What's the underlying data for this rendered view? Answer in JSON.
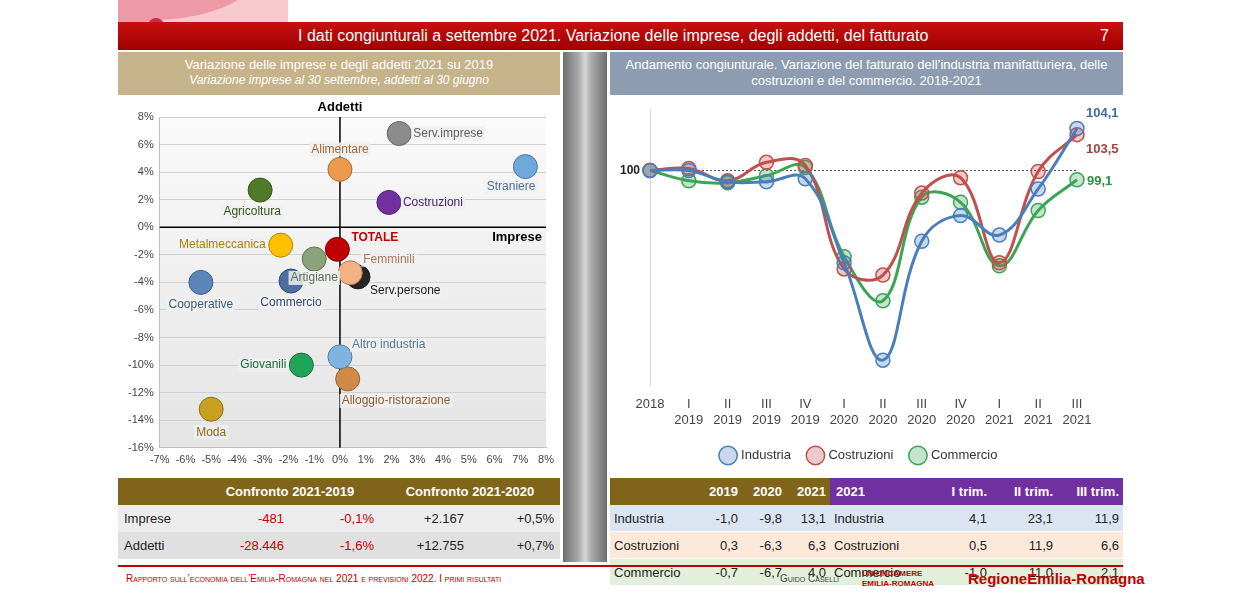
{
  "header": {
    "title": "I dati congiunturali a settembre 2021. Variazione delle imprese, degli addetti, del fatturato",
    "page": "7"
  },
  "chart_data": [
    {
      "type": "scatter",
      "title": "Variazione delle imprese e degli addetti 2021 su 2019",
      "subtitle": "Variazione imprese al 30 settembre, addetti al 30 giugno",
      "xlabel": "Imprese",
      "ylabel": "Addetti",
      "xlim": [
        -7,
        8
      ],
      "xticks": [
        {
          "value": -7,
          "label": "-7%"
        },
        {
          "value": -6,
          "label": "-6%"
        },
        {
          "value": -5,
          "label": "-5%"
        },
        {
          "value": -4,
          "label": "-4%"
        },
        {
          "value": -3,
          "label": "-3%"
        },
        {
          "value": -2,
          "label": "-2%"
        },
        {
          "value": -1,
          "label": "-1%"
        },
        {
          "value": 0,
          "label": "0%"
        },
        {
          "value": 1,
          "label": "1%"
        },
        {
          "value": 2,
          "label": "2%"
        },
        {
          "value": 3,
          "label": "3%"
        },
        {
          "value": 4,
          "label": "4%"
        },
        {
          "value": 5,
          "label": "5%"
        },
        {
          "value": 6,
          "label": "6%"
        },
        {
          "value": 7,
          "label": "7%"
        },
        {
          "value": 8,
          "label": "8%"
        }
      ],
      "ylim": [
        -16,
        8
      ],
      "yticks": [
        {
          "value": -16,
          "label": "-16%"
        },
        {
          "value": -14,
          "label": "-14%"
        },
        {
          "value": -12,
          "label": "-12%"
        },
        {
          "value": -10,
          "label": "-10%"
        },
        {
          "value": -8,
          "label": "-8%"
        },
        {
          "value": -6,
          "label": "-6%"
        },
        {
          "value": -4,
          "label": "-4%"
        },
        {
          "value": -2,
          "label": "-2%"
        },
        {
          "value": 0,
          "label": "0%"
        },
        {
          "value": 2,
          "label": "2%"
        },
        {
          "value": 4,
          "label": "4%"
        },
        {
          "value": 6,
          "label": "6%"
        },
        {
          "value": 8,
          "label": "8%"
        }
      ],
      "grid": "y",
      "series": [
        {
          "name": "Serv.imprese",
          "color": "#8c8c8c",
          "x": [
            2.3
          ],
          "values": [
            6.8
          ]
        },
        {
          "name": "Alimentare",
          "color": "#ee9a4d",
          "x": [
            0.0
          ],
          "values": [
            4.2
          ]
        },
        {
          "name": "Straniere",
          "color": "#6fa8dc",
          "x": [
            7.2
          ],
          "values": [
            4.4
          ]
        },
        {
          "name": "Costruzioni",
          "color": "#7030a0",
          "x": [
            1.9
          ],
          "values": [
            1.8
          ]
        },
        {
          "name": "Agricoltura",
          "color": "#4f7a28",
          "x": [
            -3.1
          ],
          "values": [
            2.7
          ]
        },
        {
          "name": "Metalmeccanica",
          "color": "#ffc000",
          "x": [
            -2.3
          ],
          "values": [
            -1.3
          ]
        },
        {
          "name": "TOTALE",
          "color": "#c00000",
          "x": [
            -0.1
          ],
          "values": [
            -1.6
          ]
        },
        {
          "name": "Artigiane",
          "color": "#8aa37b",
          "x": [
            -1.0
          ],
          "values": [
            -2.3
          ]
        },
        {
          "name": "Femminili",
          "color": "#f4b183",
          "x": [
            0.4
          ],
          "values": [
            -3.3
          ]
        },
        {
          "name": "Serv.persone",
          "color": "#262626",
          "x": [
            0.7
          ],
          "values": [
            -3.6
          ]
        },
        {
          "name": "Cooperative",
          "color": "#5b86b8",
          "x": [
            -5.4
          ],
          "values": [
            -4.0
          ]
        },
        {
          "name": "Commercio",
          "color": "#4e6e9e",
          "x": [
            -1.9
          ],
          "values": [
            -3.9
          ]
        },
        {
          "name": "Altro industria",
          "color": "#7fb3e0",
          "x": [
            0.0
          ],
          "values": [
            -9.4
          ]
        },
        {
          "name": "Giovanili",
          "color": "#21a35a",
          "x": [
            -1.5
          ],
          "values": [
            -10.0
          ]
        },
        {
          "name": "Alloggio-ristorazione",
          "color": "#d08a48",
          "x": [
            0.3
          ],
          "values": [
            -11.0
          ]
        },
        {
          "name": "Moda",
          "color": "#c8a020",
          "x": [
            -5.0
          ],
          "values": [
            -13.2
          ]
        }
      ]
    },
    {
      "type": "line",
      "title": "Andamento congiunturale. Variazione del fatturato dell’industria manifatturiera, delle costruzioni e del commercio. 2018-2021",
      "categories": [
        "2018",
        "I 2019",
        "II 2019",
        "III 2019",
        "IV 2019",
        "I 2020",
        "II 2020",
        "III 2020",
        "IV 2020",
        "I 2021",
        "II 2021",
        "III 2021"
      ],
      "ylim": [
        79,
        106
      ],
      "tick_labels": "x",
      "legend": "bottom",
      "marker": "circle",
      "data_labels": true,
      "reference_line": 100,
      "annotations": [
        {
          "text": "100",
          "x": "2018",
          "y": 100
        }
      ],
      "series": [
        {
          "name": "Industria",
          "color": "#4a7ebb",
          "values": [
            100,
            100,
            98.9,
            98.9,
            99.2,
            91.0,
            81.5,
            93.1,
            95.6,
            93.7,
            98.2,
            104.1
          ],
          "value_labels": [
            null,
            null,
            null,
            null,
            null,
            null,
            null,
            null,
            null,
            null,
            null,
            "104,1"
          ]
        },
        {
          "name": "Costruzioni",
          "color": "#c0504d",
          "values": [
            100,
            100.2,
            99.0,
            100.8,
            100.5,
            90.4,
            89.8,
            97.8,
            99.3,
            91.0,
            99.9,
            103.5
          ],
          "value_labels": [
            null,
            null,
            null,
            null,
            null,
            null,
            null,
            null,
            null,
            null,
            null,
            "103,5"
          ]
        },
        {
          "name": "Commercio",
          "color": "#3aa655",
          "values": [
            100,
            99.0,
            98.8,
            99.5,
            100.3,
            91.6,
            87.3,
            97.4,
            96.9,
            90.7,
            96.1,
            99.1
          ],
          "value_labels": [
            null,
            null,
            null,
            null,
            null,
            null,
            null,
            null,
            null,
            null,
            null,
            "99,1"
          ]
        }
      ]
    }
  ],
  "tables": [
    {
      "groups": [
        "Confronto 2021-2019",
        "Confronto 2021-2020"
      ],
      "rows": [
        {
          "label": "Imprese",
          "values": [
            "-481",
            "-0,1%",
            "+2.167",
            "+0,5%"
          ]
        },
        {
          "label": "Addetti",
          "values": [
            "-28.446",
            "-1,6%",
            "+12.755",
            "+0,7%"
          ]
        }
      ]
    },
    {
      "left": {
        "columns": [
          "2019",
          "2020",
          "2021"
        ],
        "rows": [
          {
            "label": "Industria",
            "values": [
              "-1,0",
              "-9,8",
              "13,1"
            ]
          },
          {
            "label": "Costruzioni",
            "values": [
              "0,3",
              "-6,3",
              "6,3"
            ]
          },
          {
            "label": "Commercio",
            "values": [
              "-0,7",
              "-6,7",
              "4,0"
            ]
          }
        ]
      },
      "right": {
        "title": "2021",
        "columns": [
          "I trim.",
          "II trim.",
          "III trim."
        ],
        "rows": [
          {
            "label": "Industria",
            "values": [
              "4,1",
              "23,1",
              "11,9"
            ]
          },
          {
            "label": "Costruzioni",
            "values": [
              "0,5",
              "11,9",
              "6,6"
            ]
          },
          {
            "label": "Commercio",
            "values": [
              "-1,0",
              "11,0",
              "2,1"
            ]
          }
        ]
      }
    }
  ],
  "footer": {
    "report": "Rapporto sull’economia dell’Emilia-Romagna nel 2021 e previsioni 2022. I primi risultati",
    "author": "Guido Caselli",
    "unioncamere": "UNIONCAMERE EMILIA-ROMAGNA",
    "regione": "RegioneEmilia-Romagna"
  }
}
